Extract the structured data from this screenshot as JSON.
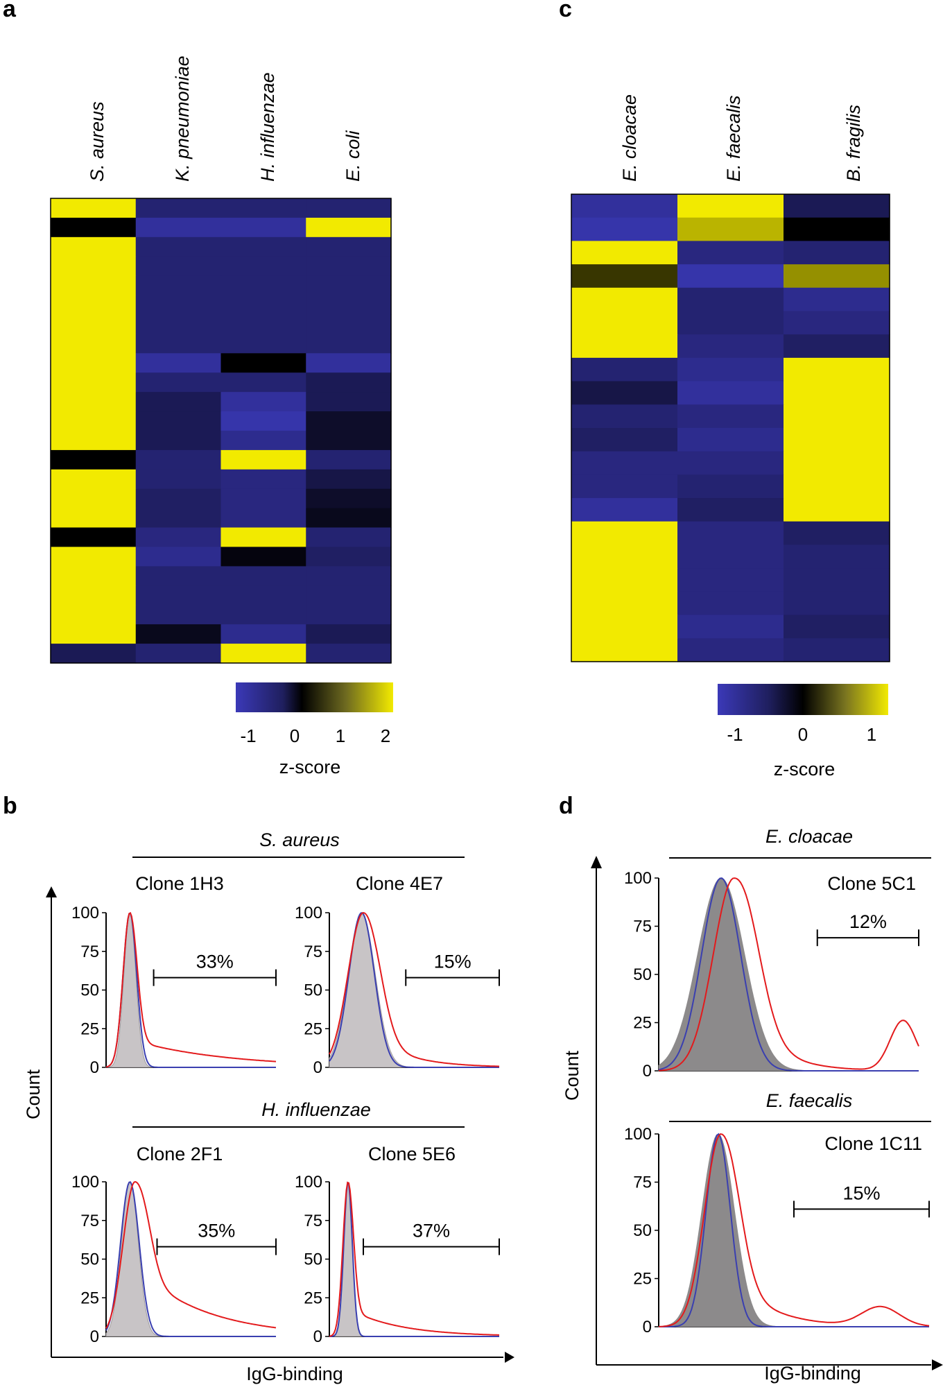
{
  "colors": {
    "low": "#3b39b8",
    "mid": "#000000",
    "high": "#f2ea00",
    "hist_control": "#c8c4c6",
    "hist_control_dark": "#8c8a8b",
    "hist_blue": "#3a3fb0",
    "hist_red": "#e31a1c"
  },
  "chart_data": [
    {
      "panel": "a",
      "type": "heatmap",
      "columns": [
        "S. aureus",
        "K. pneumoniae",
        "H. influenzae",
        "E. coli"
      ],
      "zmin": -1.3,
      "zmax": 2,
      "values": [
        [
          2,
          -0.8,
          -0.8,
          -0.8
        ],
        [
          0,
          -1.1,
          -1.1,
          2
        ],
        [
          2,
          -0.8,
          -0.8,
          -0.8
        ],
        [
          2,
          -0.8,
          -0.8,
          -0.8
        ],
        [
          2,
          -0.8,
          -0.8,
          -0.8
        ],
        [
          2,
          -0.8,
          -0.8,
          -0.8
        ],
        [
          2,
          -0.8,
          -0.8,
          -0.8
        ],
        [
          2,
          -0.8,
          -0.8,
          -0.8
        ],
        [
          2,
          -1.1,
          0,
          -1.1
        ],
        [
          2,
          -0.8,
          -0.8,
          -0.6
        ],
        [
          2,
          -0.6,
          -1.1,
          -0.6
        ],
        [
          2,
          -0.6,
          -1.2,
          -0.3
        ],
        [
          2,
          -0.6,
          -1.0,
          -0.3
        ],
        [
          0,
          -0.8,
          2,
          -0.8
        ],
        [
          2,
          -0.8,
          -0.9,
          -0.5
        ],
        [
          2,
          -0.7,
          -0.9,
          -0.3
        ],
        [
          2,
          -0.7,
          -0.9,
          -0.2
        ],
        [
          0,
          -0.9,
          2,
          -0.8
        ],
        [
          2,
          -1.0,
          -0.1,
          -0.7
        ],
        [
          2,
          -0.8,
          -0.8,
          -0.8
        ],
        [
          2,
          -0.8,
          -0.8,
          -0.8
        ],
        [
          2,
          -0.8,
          -0.8,
          -0.8
        ],
        [
          2,
          -0.2,
          -1.0,
          -0.6
        ],
        [
          -0.6,
          -0.8,
          2,
          -0.8
        ]
      ],
      "colorbar": {
        "label": "z-score",
        "ticks": [
          "-1",
          "0",
          "1",
          "2"
        ],
        "tick_values": [
          -1,
          0,
          1,
          2
        ]
      }
    },
    {
      "panel": "c",
      "type": "heatmap",
      "columns": [
        "E. cloacae",
        "E. faecalis",
        "B. fragilis"
      ],
      "zmin": -1.3,
      "zmax": 1.3,
      "values": [
        [
          -1.1,
          1.3,
          -0.6
        ],
        [
          -1.2,
          1.0,
          0
        ],
        [
          1.3,
          -0.9,
          -0.8
        ],
        [
          0.3,
          -1.2,
          0.8
        ],
        [
          1.3,
          -0.8,
          -1.0
        ],
        [
          1.3,
          -0.8,
          -0.9
        ],
        [
          1.3,
          -0.9,
          -0.7
        ],
        [
          -0.8,
          -1.0,
          1.3
        ],
        [
          -0.5,
          -1.1,
          1.3
        ],
        [
          -0.8,
          -0.9,
          1.3
        ],
        [
          -0.7,
          -1.0,
          1.3
        ],
        [
          -0.9,
          -0.9,
          1.3
        ],
        [
          -0.9,
          -0.8,
          1.3
        ],
        [
          -1.1,
          -0.7,
          1.3
        ],
        [
          1.3,
          -0.9,
          -0.7
        ],
        [
          1.3,
          -0.9,
          -0.8
        ],
        [
          1.3,
          -0.9,
          -0.8
        ],
        [
          1.3,
          -0.9,
          -0.8
        ],
        [
          1.3,
          -1.0,
          -0.7
        ],
        [
          1.3,
          -0.9,
          -0.8
        ]
      ],
      "colorbar": {
        "label": "z-score",
        "ticks": [
          "-1",
          "0",
          "1"
        ],
        "tick_values": [
          -1,
          0,
          1
        ]
      }
    },
    {
      "panel": "b",
      "type": "line",
      "x_label": "IgG-binding",
      "y_label": "Count",
      "y_ticks": [
        "0",
        "25",
        "50",
        "75",
        "100"
      ],
      "ylim": [
        0,
        100
      ],
      "xlim": [
        0,
        1
      ],
      "groups": [
        {
          "title": "S. aureus",
          "plots": [
            {
              "clone": "Clone 1H3",
              "percent": "33%",
              "gate": [
                0.28,
                1.0
              ],
              "series": [
                {
                  "name": "control",
                  "mu": 0.14,
                  "sigma": 0.035
                },
                {
                  "name": "blue",
                  "mu": 0.14,
                  "sigma": 0.04
                },
                {
                  "name": "red",
                  "mu": 0.14,
                  "sigma": 0.04,
                  "tail": 18,
                  "tail_decay": 0.55
                }
              ]
            },
            {
              "clone": "Clone 4E7",
              "percent": "15%",
              "gate": [
                0.45,
                1.0
              ],
              "series": [
                {
                  "name": "control",
                  "mu": 0.19,
                  "sigma": 0.08
                },
                {
                  "name": "blue",
                  "mu": 0.19,
                  "sigma": 0.075
                },
                {
                  "name": "red",
                  "mu": 0.2,
                  "sigma": 0.09,
                  "tail": 25,
                  "tail_decay": 0.22
                }
              ]
            }
          ]
        },
        {
          "title": "H. influenzae",
          "plots": [
            {
              "clone": "Clone 2F1",
              "percent": "35%",
              "gate": [
                0.3,
                1.0
              ],
              "series": [
                {
                  "name": "control",
                  "mu": 0.14,
                  "sigma": 0.05
                },
                {
                  "name": "blue",
                  "mu": 0.14,
                  "sigma": 0.055
                },
                {
                  "name": "red",
                  "mu": 0.17,
                  "sigma": 0.07,
                  "tail": 45,
                  "tail_decay": 0.4
                }
              ]
            },
            {
              "clone": "Clone 5E6",
              "percent": "37%",
              "gate": [
                0.2,
                1.0
              ],
              "series": [
                {
                  "name": "control",
                  "mu": 0.11,
                  "sigma": 0.025
                },
                {
                  "name": "blue",
                  "mu": 0.11,
                  "sigma": 0.025
                },
                {
                  "name": "red",
                  "mu": 0.11,
                  "sigma": 0.03,
                  "tail": 18,
                  "tail_decay": 0.3
                }
              ]
            }
          ]
        }
      ]
    },
    {
      "panel": "d",
      "type": "line",
      "x_label": "IgG-binding",
      "y_label": "Count",
      "y_ticks": [
        "0",
        "25",
        "50",
        "75",
        "100"
      ],
      "ylim": [
        0,
        100
      ],
      "xlim": [
        0,
        1
      ],
      "groups": [
        {
          "title": "E. cloacae",
          "plots": [
            {
              "clone": "Clone 5C1",
              "percent": "12%",
              "gate": [
                0.61,
                1.0
              ],
              "series": [
                {
                  "name": "control",
                  "mu": 0.24,
                  "sigma": 0.09
                },
                {
                  "name": "blue",
                  "mu": 0.24,
                  "sigma": 0.075
                },
                {
                  "name": "red",
                  "mu": 0.29,
                  "sigma": 0.08,
                  "tail": 45,
                  "tail_decay": 0.12,
                  "bump": 26,
                  "bump_mu": 0.94,
                  "bump_sigma": 0.05
                }
              ]
            }
          ]
        },
        {
          "title": "E. faecalis",
          "plots": [
            {
              "clone": "Clone 1C11",
              "percent": "15%",
              "gate": [
                0.5,
                1.0
              ],
              "series": [
                {
                  "name": "control",
                  "mu": 0.22,
                  "sigma": 0.06
                },
                {
                  "name": "blue",
                  "mu": 0.22,
                  "sigma": 0.045
                },
                {
                  "name": "red",
                  "mu": 0.23,
                  "sigma": 0.06,
                  "tail": 35,
                  "tail_decay": 0.14,
                  "bump": 10,
                  "bump_mu": 0.82,
                  "bump_sigma": 0.07
                }
              ]
            }
          ]
        }
      ]
    }
  ]
}
